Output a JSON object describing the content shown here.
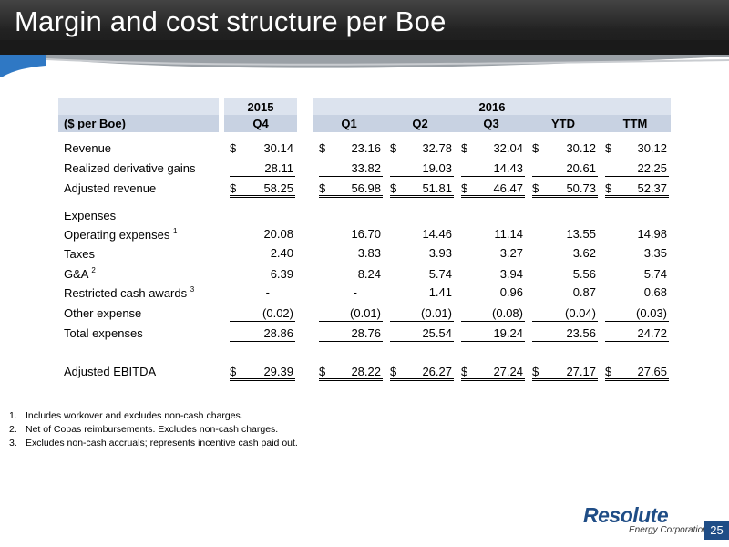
{
  "title": "Margin and cost structure per Boe",
  "table": {
    "year_2015": "2015",
    "year_2016": "2016",
    "label_header": "($ per Boe)",
    "columns": [
      "Q4",
      "Q1",
      "Q2",
      "Q3",
      "YTD",
      "TTM"
    ],
    "rows": {
      "revenue": {
        "label": "Revenue",
        "values": [
          "30.14",
          "23.16",
          "32.78",
          "32.04",
          "30.12",
          "30.12"
        ]
      },
      "derivative": {
        "label": "Realized derivative gains",
        "values": [
          "28.11",
          "33.82",
          "19.03",
          "14.43",
          "20.61",
          "22.25"
        ]
      },
      "adj_revenue": {
        "label": "Adjusted revenue",
        "values": [
          "58.25",
          "56.98",
          "51.81",
          "46.47",
          "50.73",
          "52.37"
        ]
      },
      "expenses_header": {
        "label": "Expenses"
      },
      "opex": {
        "label": "Operating expenses",
        "sup": "1",
        "values": [
          "20.08",
          "16.70",
          "14.46",
          "11.14",
          "13.55",
          "14.98"
        ]
      },
      "taxes": {
        "label": "Taxes",
        "values": [
          "2.40",
          "3.83",
          "3.93",
          "3.27",
          "3.62",
          "3.35"
        ]
      },
      "ga": {
        "label": "G&A",
        "sup": "2",
        "values": [
          "6.39",
          "8.24",
          "5.74",
          "3.94",
          "5.56",
          "5.74"
        ]
      },
      "restricted": {
        "label": "Restricted cash awards",
        "sup": "3",
        "values": [
          "-",
          "-",
          "1.41",
          "0.96",
          "0.87",
          "0.68"
        ]
      },
      "other": {
        "label": "Other expense",
        "values": [
          "(0.02)",
          "(0.01)",
          "(0.01)",
          "(0.08)",
          "(0.04)",
          "(0.03)"
        ]
      },
      "total": {
        "label": "Total expenses",
        "values": [
          "28.86",
          "28.76",
          "25.54",
          "19.24",
          "23.56",
          "24.72"
        ]
      },
      "ebitda": {
        "label": "Adjusted EBITDA",
        "values": [
          "29.39",
          "28.22",
          "26.27",
          "27.24",
          "27.17",
          "27.65"
        ]
      }
    },
    "currency_symbol": "$"
  },
  "footnotes": [
    {
      "num": "1.",
      "text": "Includes workover and excludes non-cash charges."
    },
    {
      "num": "2.",
      "text": "Net of Copas reimbursements. Excludes non-cash charges."
    },
    {
      "num": "3.",
      "text": "Excludes non-cash accruals; represents incentive cash paid out."
    }
  ],
  "logo": {
    "name": "Resolute",
    "sub": "Energy Corporation"
  },
  "page_number": "25",
  "colors": {
    "header_bg": "#222222",
    "header_light": "#dce3ee",
    "header_dark": "#c8d2e2",
    "brand_blue": "#1f4d86"
  }
}
